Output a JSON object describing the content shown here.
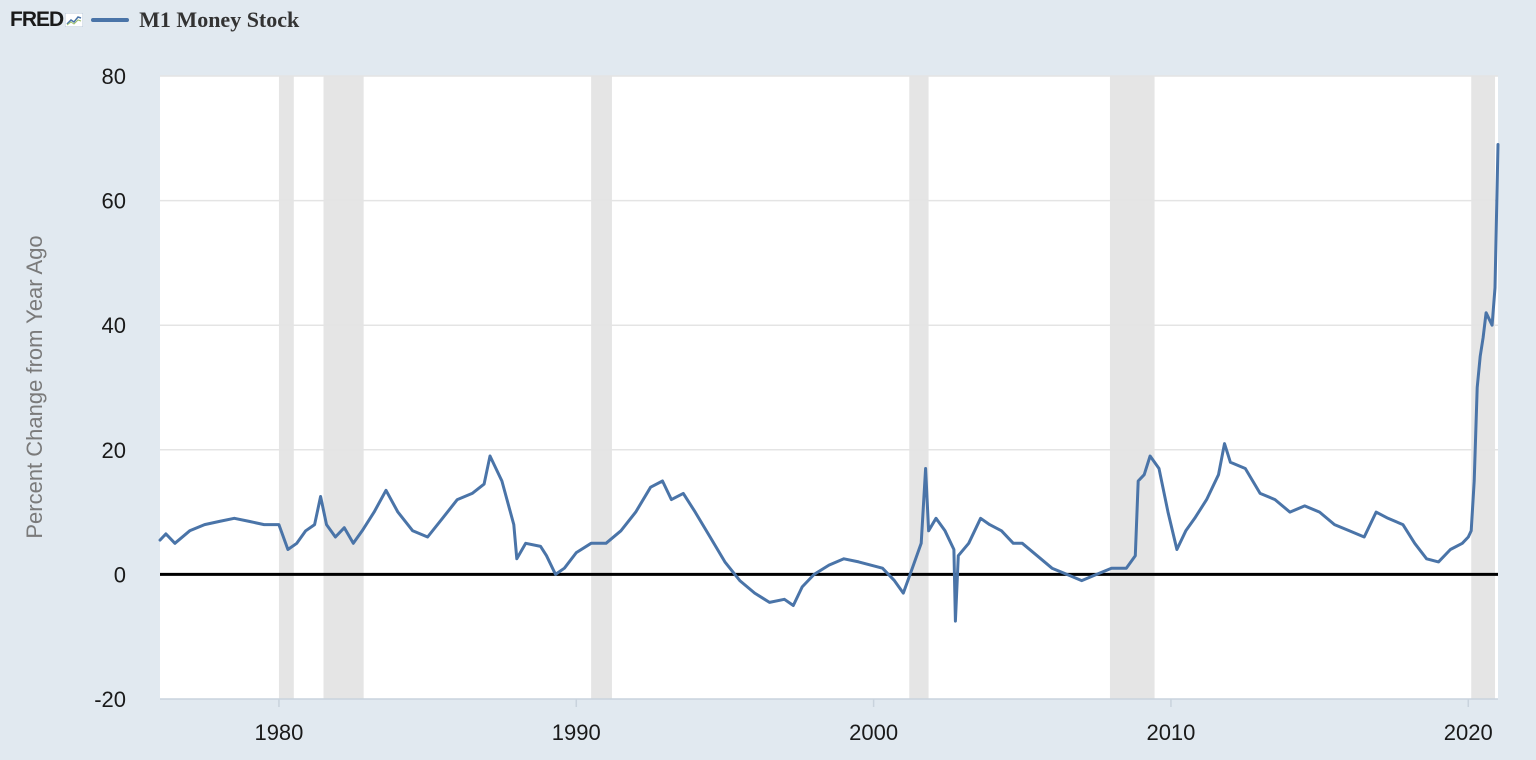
{
  "header": {
    "logo_text": "FRED",
    "logo_icon": "chart-sparkline-icon"
  },
  "chart_data": {
    "type": "line",
    "title": "",
    "xlabel": "",
    "ylabel": "Percent Change from Year Ago",
    "xlim": [
      1976,
      2021
    ],
    "ylim": [
      -20,
      80
    ],
    "x_ticks": [
      1980,
      1990,
      2000,
      2010,
      2020
    ],
    "y_ticks": [
      -20,
      0,
      20,
      40,
      60,
      80
    ],
    "grid": "horizontal",
    "legend": "top-left",
    "reference_line": 0,
    "recessions": [
      [
        1980.0,
        1980.5
      ],
      [
        1981.5,
        1982.85
      ],
      [
        1990.5,
        1991.2
      ],
      [
        2001.2,
        2001.85
      ],
      [
        2007.95,
        2009.45
      ],
      [
        2020.1,
        2020.9
      ]
    ],
    "series": [
      {
        "name": "M1 Money Stock",
        "color": "#4a74a8",
        "x": [
          1976.0,
          1976.2,
          1976.5,
          1977.0,
          1977.5,
          1978.0,
          1978.5,
          1979.0,
          1979.5,
          1980.0,
          1980.3,
          1980.6,
          1980.9,
          1981.2,
          1981.4,
          1981.6,
          1981.9,
          1982.2,
          1982.5,
          1982.8,
          1983.2,
          1983.6,
          1984.0,
          1984.5,
          1985.0,
          1985.5,
          1986.0,
          1986.5,
          1986.9,
          1987.1,
          1987.5,
          1987.9,
          1988.0,
          1988.3,
          1988.8,
          1989.0,
          1989.3,
          1989.6,
          1990.0,
          1990.5,
          1991.0,
          1991.5,
          1992.0,
          1992.5,
          1992.9,
          1993.2,
          1993.6,
          1994.0,
          1994.5,
          1995.0,
          1995.5,
          1996.0,
          1996.5,
          1997.0,
          1997.3,
          1997.6,
          1998.0,
          1998.5,
          1999.0,
          1999.5,
          1999.9,
          2000.3,
          2000.7,
          2001.0,
          2001.3,
          2001.6,
          2001.75,
          2001.85,
          2002.1,
          2002.4,
          2002.7,
          2002.75,
          2002.85,
          2003.2,
          2003.6,
          2003.9,
          2004.3,
          2004.7,
          2005.0,
          2005.5,
          2006.0,
          2006.5,
          2007.0,
          2007.5,
          2008.0,
          2008.5,
          2008.8,
          2008.9,
          2009.1,
          2009.3,
          2009.6,
          2009.9,
          2010.2,
          2010.5,
          2010.8,
          2011.2,
          2011.6,
          2011.8,
          2012.0,
          2012.5,
          2013.0,
          2013.5,
          2014.0,
          2014.5,
          2015.0,
          2015.5,
          2016.0,
          2016.5,
          2016.9,
          2017.3,
          2017.8,
          2018.2,
          2018.6,
          2019.0,
          2019.4,
          2019.8,
          2020.0,
          2020.1,
          2020.2,
          2020.3,
          2020.4,
          2020.5,
          2020.6,
          2020.8,
          2020.9,
          2021.0
        ],
        "y": [
          5.5,
          6.5,
          5.0,
          7.0,
          8.0,
          8.5,
          9.0,
          8.5,
          8.0,
          8.0,
          4.0,
          5.0,
          7.0,
          8.0,
          12.5,
          8.0,
          6.0,
          7.5,
          5.0,
          7.0,
          10.0,
          13.5,
          10.0,
          7.0,
          6.0,
          9.0,
          12.0,
          13.0,
          14.5,
          19.0,
          15.0,
          8.0,
          2.5,
          5.0,
          4.5,
          3.0,
          0.0,
          1.0,
          3.5,
          5.0,
          5.0,
          7.0,
          10.0,
          14.0,
          15.0,
          12.0,
          13.0,
          10.0,
          6.0,
          2.0,
          -1.0,
          -3.0,
          -4.5,
          -4.0,
          -5.0,
          -2.0,
          0.0,
          1.5,
          2.5,
          2.0,
          1.5,
          1.0,
          -1.0,
          -3.0,
          1.0,
          5.0,
          17.0,
          7.0,
          9.0,
          7.0,
          4.0,
          -7.5,
          3.0,
          5.0,
          9.0,
          8.0,
          7.0,
          5.0,
          5.0,
          3.0,
          1.0,
          0.0,
          -1.0,
          0.0,
          1.0,
          1.0,
          3.0,
          15.0,
          16.0,
          19.0,
          17.0,
          10.0,
          4.0,
          7.0,
          9.0,
          12.0,
          16.0,
          21.0,
          18.0,
          17.0,
          13.0,
          12.0,
          10.0,
          11.0,
          10.0,
          8.0,
          7.0,
          6.0,
          10.0,
          9.0,
          8.0,
          5.0,
          2.5,
          2.0,
          4.0,
          5.0,
          6.0,
          7.0,
          15.0,
          30.0,
          35.0,
          38.0,
          42.0,
          40.0,
          46.0,
          69.0
        ]
      }
    ]
  }
}
